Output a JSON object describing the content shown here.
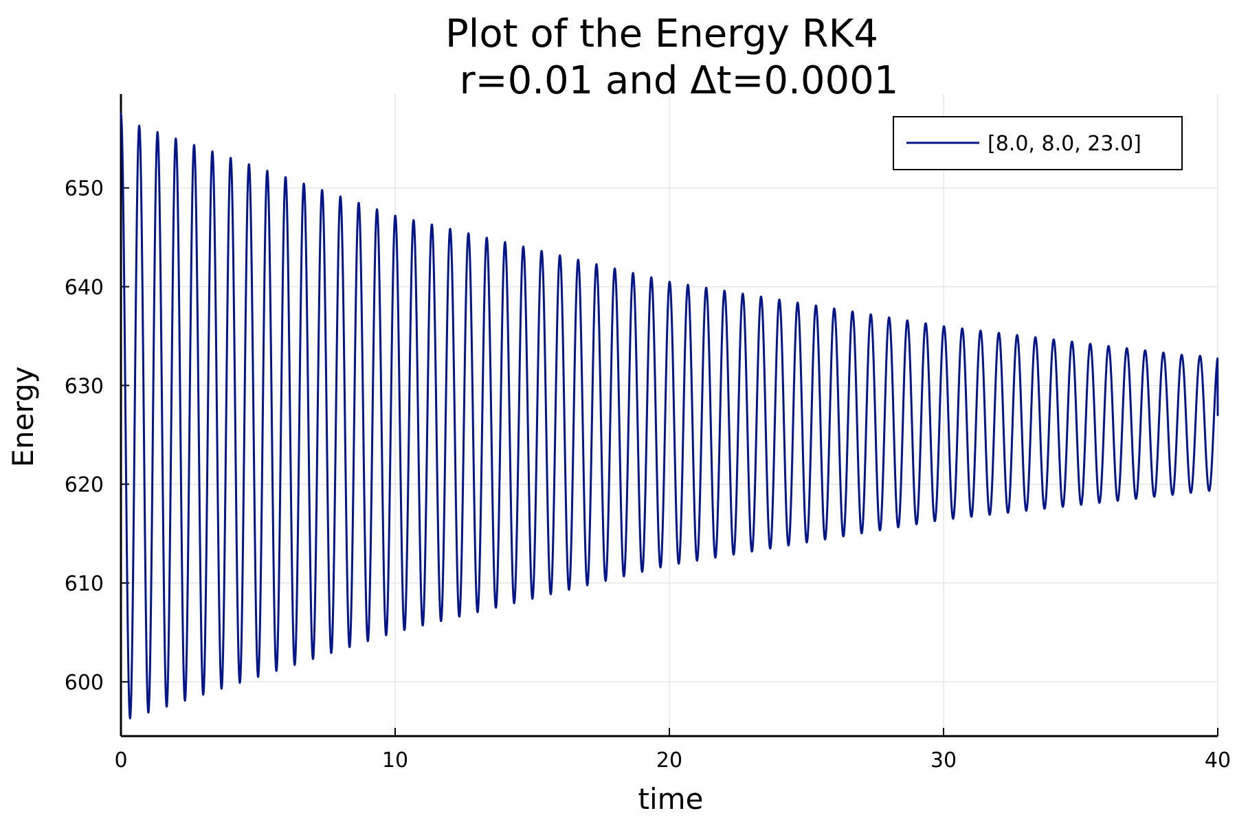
{
  "chart_data": {
    "type": "line",
    "title": "Plot of the Energy RK4",
    "subtitle": "r=0.01 and Δt=0.0001",
    "xlabel": "time",
    "ylabel": "Energy",
    "xlim": [
      0,
      40
    ],
    "ylim": [
      594.5,
      659.5
    ],
    "x_ticks": [
      0,
      10,
      20,
      30,
      40
    ],
    "x_tick_labels": [
      "0",
      "10",
      "20",
      "30",
      "40"
    ],
    "y_ticks": [
      600,
      610,
      620,
      630,
      640,
      650
    ],
    "y_tick_labels": [
      "600",
      "610",
      "620",
      "630",
      "640",
      "650"
    ],
    "grid": true,
    "legend_position": "top-right",
    "series": [
      {
        "name": "[8.0, 8.0, 23.0]",
        "color": "#00158a",
        "oscillation_period": 0.667,
        "start": [
          0,
          657.5
        ],
        "end": [
          40,
          627.0
        ],
        "peaks": [
          [
            0,
            657.5
          ],
          [
            0.667,
            656.3
          ],
          [
            10,
            647.2
          ],
          [
            20,
            640.5
          ],
          [
            30,
            636.0
          ],
          [
            39,
            633.0
          ]
        ],
        "troughs": [
          [
            0.35,
            596.3
          ],
          [
            10,
            605.0
          ],
          [
            20,
            611.8
          ],
          [
            30,
            616.4
          ],
          [
            39.9,
            619.4
          ]
        ]
      }
    ]
  }
}
